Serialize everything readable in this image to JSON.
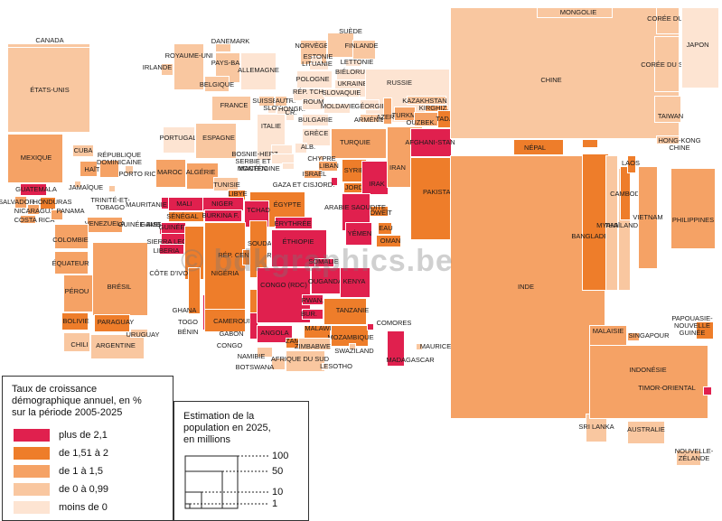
{
  "colors": {
    "plus_de_2_1": "#e0204e",
    "1_51_a_2": "#ee7d2a",
    "1_a_1_5": "#f5a265",
    "0_a_0_99": "#f9c7a0",
    "moins_de_0": "#fde4d2"
  },
  "watermark": "© bdkgraphics.be",
  "legend": {
    "title": "Taux de croissance\ndémographique annuel, en %\nsur la période 2005-2025",
    "classes": [
      {
        "label": "plus de 2,1",
        "color_key": "plus_de_2_1"
      },
      {
        "label": "de 1,51 à 2",
        "color_key": "1_51_a_2"
      },
      {
        "label": "de 1 à 1,5",
        "color_key": "1_a_1_5"
      },
      {
        "label": "de 0 à 0,99",
        "color_key": "0_a_0_99"
      },
      {
        "label": "moins de 0",
        "color_key": "moins_de_0"
      }
    ],
    "size_title": "Estimation de la\npopulation en 2025,\nen millions",
    "size_values": [
      "100",
      "50",
      "10",
      "1"
    ]
  },
  "countries": [
    {
      "name": "CANADA",
      "class": "0_a_0_99"
    },
    {
      "name": "ÉTATS-UNIS",
      "class": "0_a_0_99"
    },
    {
      "name": "MEXIQUE",
      "class": "1_a_1_5"
    },
    {
      "name": "CUBA",
      "class": "0_a_0_99"
    },
    {
      "name": "HAÏTI",
      "class": "1_a_1_5"
    },
    {
      "name": "RÉPUBLIQUE DOMINICAINE",
      "class": "1_a_1_5"
    },
    {
      "name": "PORTO RICO",
      "class": "0_a_0_99"
    },
    {
      "name": "JAMAÏQUE",
      "class": "0_a_0_99"
    },
    {
      "name": "TRINITÉ-ET-TOBAGO",
      "class": "0_a_0_99"
    },
    {
      "name": "GUATEMALA",
      "class": "plus_de_2_1"
    },
    {
      "name": "SALVADOR",
      "class": "1_a_1_5"
    },
    {
      "name": "HONDURAS",
      "class": "1_51_a_2"
    },
    {
      "name": "NICARAGUA",
      "class": "1_a_1_5"
    },
    {
      "name": "COSTA RICA",
      "class": "1_a_1_5"
    },
    {
      "name": "PANAMA",
      "class": "1_a_1_5"
    },
    {
      "name": "VENEZUELA",
      "class": "1_a_1_5"
    },
    {
      "name": "COLOMBIE",
      "class": "1_a_1_5"
    },
    {
      "name": "ÉQUATEUR",
      "class": "1_a_1_5"
    },
    {
      "name": "PÉROU",
      "class": "1_a_1_5"
    },
    {
      "name": "BRÉSIL",
      "class": "1_a_1_5"
    },
    {
      "name": "BOLIVIE",
      "class": "1_51_a_2"
    },
    {
      "name": "PARAGUAY",
      "class": "1_51_a_2"
    },
    {
      "name": "CHILI",
      "class": "0_a_0_99"
    },
    {
      "name": "ARGENTINE",
      "class": "0_a_0_99"
    },
    {
      "name": "URUGUAY",
      "class": "0_a_0_99"
    },
    {
      "name": "IRLANDE",
      "class": "0_a_0_99"
    },
    {
      "name": "ROYAUME-UNI",
      "class": "0_a_0_99"
    },
    {
      "name": "DANEMARK",
      "class": "0_a_0_99"
    },
    {
      "name": "PAYS-BAS",
      "class": "0_a_0_99"
    },
    {
      "name": "BELGIQUE",
      "class": "0_a_0_99"
    },
    {
      "name": "ALLEMAGNE",
      "class": "moins_de_0"
    },
    {
      "name": "FRANCE",
      "class": "0_a_0_99"
    },
    {
      "name": "PORTUGAL",
      "class": "moins_de_0"
    },
    {
      "name": "ESPAGNE",
      "class": "0_a_0_99"
    },
    {
      "name": "SUISSE",
      "class": "0_a_0_99"
    },
    {
      "name": "AUTR.",
      "class": "0_a_0_99"
    },
    {
      "name": "SLOV.",
      "class": "moins_de_0"
    },
    {
      "name": "HONGR.",
      "class": "moins_de_0"
    },
    {
      "name": "CR.",
      "class": "moins_de_0"
    },
    {
      "name": "ITALIE",
      "class": "moins_de_0"
    },
    {
      "name": "NORVÈGE",
      "class": "0_a_0_99"
    },
    {
      "name": "SUÈDE",
      "class": "0_a_0_99"
    },
    {
      "name": "FINLANDE",
      "class": "0_a_0_99"
    },
    {
      "name": "ESTONIE",
      "class": "moins_de_0"
    },
    {
      "name": "LITUANIE",
      "class": "moins_de_0"
    },
    {
      "name": "LETTONIE",
      "class": "moins_de_0"
    },
    {
      "name": "BIÉLORUSSIE",
      "class": "moins_de_0"
    },
    {
      "name": "POLOGNE",
      "class": "moins_de_0"
    },
    {
      "name": "UKRAINE",
      "class": "moins_de_0"
    },
    {
      "name": "RÉP. TCH.",
      "class": "moins_de_0"
    },
    {
      "name": "SLOVAQUIE",
      "class": "moins_de_0"
    },
    {
      "name": "ROUM.",
      "class": "moins_de_0"
    },
    {
      "name": "MOLDAVIE",
      "class": "moins_de_0"
    },
    {
      "name": "BULGARIE",
      "class": "moins_de_0"
    },
    {
      "name": "GRÈCE",
      "class": "moins_de_0"
    },
    {
      "name": "ALB.",
      "class": "moins_de_0"
    },
    {
      "name": "BOSNIE-HERZ.",
      "class": "moins_de_0"
    },
    {
      "name": "SERBIE ET MONTÉN.",
      "class": "moins_de_0"
    },
    {
      "name": "MACÉDOINE",
      "class": "moins_de_0"
    },
    {
      "name": "RUSSIE",
      "class": "moins_de_0"
    },
    {
      "name": "GÉORGIE",
      "class": "moins_de_0"
    },
    {
      "name": "ARMÉNIE",
      "class": "0_a_0_99"
    },
    {
      "name": "AZERB.",
      "class": "1_a_1_5"
    },
    {
      "name": "KAZAKHSTAN",
      "class": "0_a_0_99"
    },
    {
      "name": "KIRGHIZ.",
      "class": "1_a_1_5"
    },
    {
      "name": "TURKM.",
      "class": "1_a_1_5"
    },
    {
      "name": "OUZBEK.",
      "class": "1_a_1_5"
    },
    {
      "name": "TADJIK.",
      "class": "1_51_a_2"
    },
    {
      "name": "TURQUIE",
      "class": "1_a_1_5"
    },
    {
      "name": "CHYPRE",
      "class": "0_a_0_99"
    },
    {
      "name": "SYRIE",
      "class": "1_51_a_2"
    },
    {
      "name": "LIBAN",
      "class": "1_a_1_5"
    },
    {
      "name": "ISRAËL",
      "class": "1_a_1_5"
    },
    {
      "name": "GAZA ET CISJORD.",
      "class": "plus_de_2_1"
    },
    {
      "name": "JORD.",
      "class": "1_51_a_2"
    },
    {
      "name": "IRAK",
      "class": "plus_de_2_1"
    },
    {
      "name": "IRAN",
      "class": "1_a_1_5"
    },
    {
      "name": "KOWEÏT",
      "class": "1_51_a_2"
    },
    {
      "name": "ARABIE SAOUDITE",
      "class": "plus_de_2_1"
    },
    {
      "name": "YÉMEN",
      "class": "plus_de_2_1"
    },
    {
      "name": "EAU",
      "class": "1_51_a_2"
    },
    {
      "name": "OMAN",
      "class": "1_51_a_2"
    },
    {
      "name": "AFGHANI-STAN",
      "class": "plus_de_2_1"
    },
    {
      "name": "PAKISTAN",
      "class": "1_51_a_2"
    },
    {
      "name": "INDE",
      "class": "1_a_1_5"
    },
    {
      "name": "NÉPAL",
      "class": "1_51_a_2"
    },
    {
      "name": "BHOUTAN",
      "class": "1_51_a_2"
    },
    {
      "name": "BANGLADESH",
      "class": "1_51_a_2"
    },
    {
      "name": "SRI LANKA",
      "class": "0_a_0_99"
    },
    {
      "name": "MYANMAR",
      "class": "0_a_0_99"
    },
    {
      "name": "THAÏLANDE",
      "class": "0_a_0_99"
    },
    {
      "name": "CAMBODGE",
      "class": "1_51_a_2"
    },
    {
      "name": "LAOS",
      "class": "1_51_a_2"
    },
    {
      "name": "VIETNAM",
      "class": "1_a_1_5"
    },
    {
      "name": "CHINE",
      "class": "0_a_0_99"
    },
    {
      "name": "MONGOLIE",
      "class": "0_a_0_99"
    },
    {
      "name": "CORÉE DU NORD",
      "class": "0_a_0_99"
    },
    {
      "name": "CORÉE DU SUD",
      "class": "0_a_0_99"
    },
    {
      "name": "JAPON",
      "class": "moins_de_0"
    },
    {
      "name": "TAIWAN",
      "class": "0_a_0_99"
    },
    {
      "name": "HONG-KONG CHINE",
      "class": "0_a_0_99"
    },
    {
      "name": "PHILIPPINES",
      "class": "1_a_1_5"
    },
    {
      "name": "MALAISIE",
      "class": "1_a_1_5"
    },
    {
      "name": "SINGAPOUR",
      "class": "1_a_1_5"
    },
    {
      "name": "INDONÉSIE",
      "class": "1_a_1_5"
    },
    {
      "name": "TIMOR-ORIENTAL",
      "class": "plus_de_2_1"
    },
    {
      "name": "PAPOUASIE-NOUVELLE GUINÉE",
      "class": "1_51_a_2"
    },
    {
      "name": "AUSTRALIE",
      "class": "0_a_0_99"
    },
    {
      "name": "NOUVELLE-ZÉLANDE",
      "class": "0_a_0_99"
    },
    {
      "name": "MAROC",
      "class": "1_a_1_5"
    },
    {
      "name": "ALGÉRIE",
      "class": "1_a_1_5"
    },
    {
      "name": "TUNISIE",
      "class": "0_a_0_99"
    },
    {
      "name": "LIBYE",
      "class": "1_51_a_2"
    },
    {
      "name": "ÉGYPTE",
      "class": "1_51_a_2"
    },
    {
      "name": "MAURITANIE",
      "class": "plus_de_2_1"
    },
    {
      "name": "MALI",
      "class": "plus_de_2_1"
    },
    {
      "name": "NIGER",
      "class": "plus_de_2_1"
    },
    {
      "name": "TCHAD",
      "class": "plus_de_2_1"
    },
    {
      "name": "SÉNÉGAL",
      "class": "1_51_a_2"
    },
    {
      "name": "BURKINA F.",
      "class": "plus_de_2_1"
    },
    {
      "name": "GAMBIE",
      "class": "plus_de_2_1"
    },
    {
      "name": "GUINÉE-BISSAU",
      "class": "plus_de_2_1"
    },
    {
      "name": "GUINÉE",
      "class": "plus_de_2_1"
    },
    {
      "name": "SIERRA LEONE",
      "class": "plus_de_2_1"
    },
    {
      "name": "LIBERIA",
      "class": "plus_de_2_1"
    },
    {
      "name": "CÔTE D'IVOIRE",
      "class": "1_51_a_2"
    },
    {
      "name": "GHANA",
      "class": "1_51_a_2"
    },
    {
      "name": "TOGO",
      "class": "1_51_a_2"
    },
    {
      "name": "BÉNIN",
      "class": "plus_de_2_1"
    },
    {
      "name": "NIGÉRIA",
      "class": "1_51_a_2"
    },
    {
      "name": "CAMEROUN",
      "class": "1_51_a_2"
    },
    {
      "name": "GABON",
      "class": "1_51_a_2"
    },
    {
      "name": "CONGO",
      "class": "plus_de_2_1"
    },
    {
      "name": "RÉP. CENTRAFR.",
      "class": "1_51_a_2"
    },
    {
      "name": "SOUDAN",
      "class": "1_51_a_2"
    },
    {
      "name": "ÉRYTHRÉE",
      "class": "plus_de_2_1"
    },
    {
      "name": "ÉTHIOPIE",
      "class": "plus_de_2_1"
    },
    {
      "name": "SOMALIE",
      "class": "plus_de_2_1"
    },
    {
      "name": "CONGO (RDC)",
      "class": "plus_de_2_1"
    },
    {
      "name": "OUGANDA",
      "class": "plus_de_2_1"
    },
    {
      "name": "KENYA",
      "class": "plus_de_2_1"
    },
    {
      "name": "RWAN.",
      "class": "plus_de_2_1"
    },
    {
      "name": "BUR.",
      "class": "plus_de_2_1"
    },
    {
      "name": "TANZANIE",
      "class": "1_51_a_2"
    },
    {
      "name": "ANGOLA",
      "class": "plus_de_2_1"
    },
    {
      "name": "ZAMBIE",
      "class": "1_51_a_2"
    },
    {
      "name": "MALAWI",
      "class": "1_51_a_2"
    },
    {
      "name": "MOZAMBIQUE",
      "class": "1_51_a_2"
    },
    {
      "name": "ZIMBABWE",
      "class": "0_a_0_99"
    },
    {
      "name": "NAMIBIE",
      "class": "0_a_0_99"
    },
    {
      "name": "BOTSWANA",
      "class": "0_a_0_99"
    },
    {
      "name": "AFRIQUE DU SUD",
      "class": "0_a_0_99"
    },
    {
      "name": "LESOTHO",
      "class": "moins_de_0"
    },
    {
      "name": "SWAZILAND",
      "class": "0_a_0_99"
    },
    {
      "name": "COMORES",
      "class": "plus_de_2_1"
    },
    {
      "name": "MADAGASCAR",
      "class": "plus_de_2_1"
    },
    {
      "name": "MAURICE",
      "class": "0_a_0_99"
    }
  ]
}
